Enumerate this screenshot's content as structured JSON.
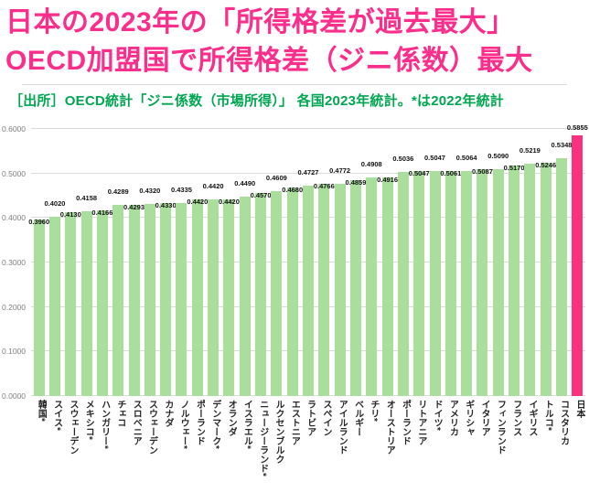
{
  "title": {
    "line1": "日本の2023年の「所得格差が過去最大」",
    "line2": "OECD加盟国で所得格差（ジニ係数）最大"
  },
  "subtitle": "［出所］OECD統計「ジニ係数（市場所得）」 各国2023年統計。*は2022年統計",
  "colors": {
    "title_pink": "#fb2e8c",
    "subtitle_green": "#00a650",
    "bar_green": "#a9de9c",
    "highlight_pink": "#fb317f",
    "gridline": "#dbdbdb",
    "axis_text": "#7f7f7f",
    "value_text": "#111111",
    "category_text": "#262626"
  },
  "chart_data": {
    "type": "bar",
    "title": "日本の2023年の「所得格差が過去最大」OECD加盟国で所得格差（ジニ係数）最大",
    "source_note": "［出所］OECD統計「ジニ係数（市場所得）」 各国2023年統計。*は2022年統計",
    "categories": [
      "韓国*",
      "スイス*",
      "スウェーデン",
      "メキシコ*",
      "ハンガリー*",
      "チェコ",
      "スロベニア",
      "スウェーデン",
      "カナダ",
      "ノルウェー*",
      "ポーランド",
      "デンマーク*",
      "オランダ",
      "イスラエル*",
      "ニュージーランド*",
      "ルクセンブルク",
      "エストニア",
      "ラトビア",
      "スペイン",
      "アイルランド",
      "ベルギー",
      "チリ*",
      "オーストリア",
      "ポーランド",
      "リトアニア",
      "ドイツ*",
      "アメリカ",
      "ギリシャ",
      "イタリア",
      "フィンランド",
      "フランス",
      "イギリス",
      "トルコ*",
      "コスタリカ",
      "日本"
    ],
    "values": [
      0.396,
      0.402,
      0.413,
      0.4158,
      0.4166,
      0.4289,
      0.4293,
      0.432,
      0.433,
      0.4335,
      0.442,
      0.442,
      0.442,
      0.449,
      0.457,
      0.4609,
      0.468,
      0.4727,
      0.4766,
      0.4772,
      0.4859,
      0.4908,
      0.4916,
      0.5036,
      0.5047,
      0.5047,
      0.5061,
      0.5064,
      0.5087,
      0.509,
      0.517,
      0.5219,
      0.5246,
      0.5348,
      0.5855
    ],
    "highlight_index": 34,
    "value_label_decimals": 4,
    "ylim": [
      0.0,
      0.6
    ],
    "ytick_labels": [
      "0.6000",
      "0.5000",
      "0.4000",
      "0.3000",
      "0.2000",
      "0.1000",
      "0.0000"
    ],
    "grid": true,
    "legend": "none"
  }
}
